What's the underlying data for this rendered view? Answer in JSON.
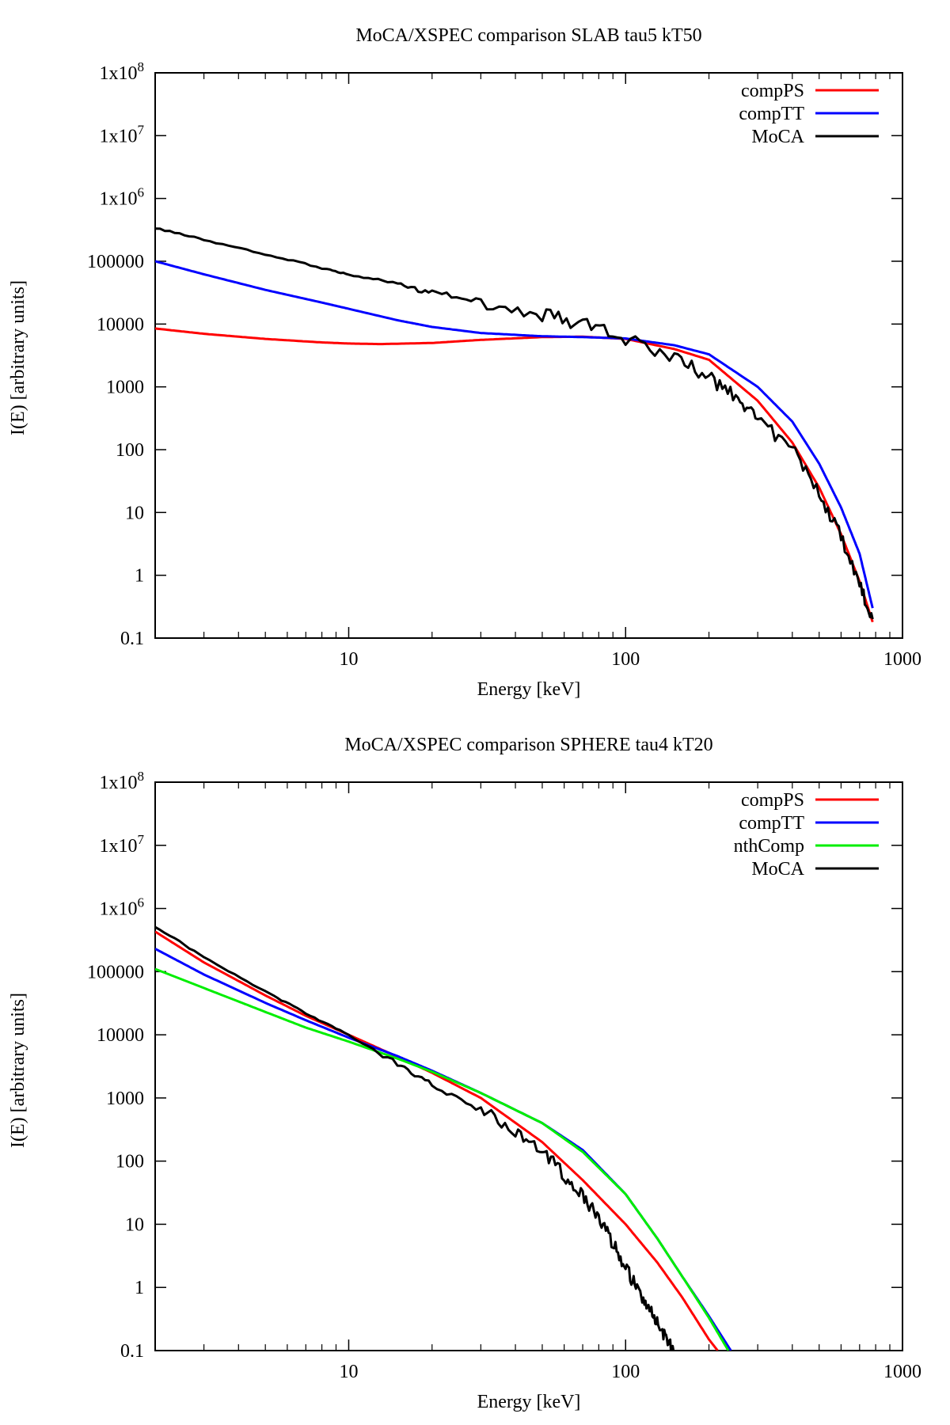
{
  "figure_kind": "two stacked log-log spectral plots",
  "chart_data": [
    {
      "type": "line",
      "title": "MoCA/XSPEC comparison SLAB tau5 kT50",
      "xlabel": "Energy [keV]",
      "ylabel": "I(E) [arbitrary units]",
      "xscale": "log",
      "yscale": "log",
      "xlim": [
        2,
        1000
      ],
      "ylim": [
        0.1,
        100000000
      ],
      "x_tick_values": [
        10,
        100,
        1000
      ],
      "x_tick_labels": [
        "10",
        "100",
        "1000"
      ],
      "y_tick_values": [
        0.1,
        1,
        10,
        100,
        1000,
        10000,
        100000,
        1000000,
        10000000,
        100000000
      ],
      "y_tick_labels": [
        {
          "base": "0.1"
        },
        {
          "base": "1"
        },
        {
          "base": "10"
        },
        {
          "base": "100"
        },
        {
          "base": "1000"
        },
        {
          "base": "10000"
        },
        {
          "base": "100000"
        },
        {
          "base": "1x10",
          "exp": "6"
        },
        {
          "base": "1x10",
          "exp": "7"
        },
        {
          "base": "1x10",
          "exp": "8"
        }
      ],
      "legend_position": "top-right",
      "series": [
        {
          "name": "compPS",
          "color": "#ff0000",
          "x": [
            2,
            3,
            5,
            8,
            10,
            13,
            20,
            30,
            50,
            70,
            100,
            150,
            200,
            300,
            400,
            500,
            600,
            700,
            780
          ],
          "y": [
            8500,
            7000,
            5800,
            5100,
            4900,
            4800,
            5000,
            5600,
            6200,
            6300,
            5800,
            4000,
            2700,
            600,
            130,
            25,
            4.5,
            0.8,
            0.18
          ]
        },
        {
          "name": "compTT",
          "color": "#0000ff",
          "x": [
            2,
            3,
            5,
            8,
            10,
            15,
            20,
            30,
            50,
            70,
            100,
            150,
            200,
            300,
            400,
            500,
            600,
            700,
            780
          ],
          "y": [
            100000,
            62000,
            35000,
            22000,
            17500,
            11500,
            9000,
            7200,
            6400,
            6200,
            5900,
            4600,
            3300,
            1000,
            280,
            60,
            12,
            2.2,
            0.3
          ]
        },
        {
          "name": "MoCA",
          "color": "#000000",
          "noisy": true,
          "x": [
            2,
            3,
            5,
            8,
            10,
            15,
            20,
            30,
            50,
            70,
            100,
            150,
            200,
            250,
            300,
            400,
            500,
            600,
            700,
            780
          ],
          "y": [
            340000,
            220000,
            130000,
            78000,
            62000,
            42000,
            32000,
            23000,
            14000,
            10000,
            6000,
            3000,
            1400,
            700,
            300,
            100,
            20,
            4,
            0.7,
            0.2
          ]
        }
      ]
    },
    {
      "type": "line",
      "title": "MoCA/XSPEC comparison SPHERE tau4 kT20",
      "xlabel": "Energy [keV]",
      "ylabel": "I(E) [arbitrary units]",
      "xscale": "log",
      "yscale": "log",
      "xlim": [
        2,
        1000
      ],
      "ylim": [
        0.1,
        100000000
      ],
      "x_tick_values": [
        10,
        100,
        1000
      ],
      "x_tick_labels": [
        "10",
        "100",
        "1000"
      ],
      "y_tick_values": [
        0.1,
        1,
        10,
        100,
        1000,
        10000,
        100000,
        1000000,
        10000000,
        100000000
      ],
      "y_tick_labels": [
        {
          "base": "0.1"
        },
        {
          "base": "1"
        },
        {
          "base": "10"
        },
        {
          "base": "100"
        },
        {
          "base": "1000"
        },
        {
          "base": "10000"
        },
        {
          "base": "100000"
        },
        {
          "base": "1x10",
          "exp": "6"
        },
        {
          "base": "1x10",
          "exp": "7"
        },
        {
          "base": "1x10",
          "exp": "8"
        }
      ],
      "legend_position": "top-right",
      "series": [
        {
          "name": "compPS",
          "color": "#ff0000",
          "x": [
            2,
            3,
            5,
            7,
            10,
            15,
            20,
            30,
            50,
            70,
            100,
            130,
            160,
            200,
            215
          ],
          "y": [
            430000,
            140000,
            42000,
            20000,
            10000,
            4500,
            2500,
            1000,
            200,
            50,
            10,
            2.5,
            0.7,
            0.15,
            0.1
          ]
        },
        {
          "name": "compTT",
          "color": "#0000ff",
          "x": [
            2,
            3,
            5,
            7,
            10,
            15,
            20,
            30,
            50,
            70,
            100,
            130,
            160,
            200,
            240
          ],
          "y": [
            230000,
            90000,
            32000,
            17000,
            9000,
            4600,
            2700,
            1200,
            400,
            150,
            30,
            6,
            1.5,
            0.35,
            0.1
          ]
        },
        {
          "name": "nthComp",
          "color": "#00ee00",
          "x": [
            2,
            3,
            5,
            7,
            10,
            15,
            20,
            30,
            50,
            70,
            100,
            130,
            160,
            200,
            235
          ],
          "y": [
            110000,
            55000,
            23000,
            13000,
            7800,
            4200,
            2600,
            1200,
            400,
            140,
            30,
            6,
            1.5,
            0.33,
            0.1
          ]
        },
        {
          "name": "MoCA",
          "color": "#000000",
          "noisy": true,
          "x": [
            2,
            3,
            5,
            7,
            10,
            15,
            20,
            30,
            40,
            50,
            60,
            70,
            80,
            90,
            100,
            110,
            120,
            130,
            140,
            150
          ],
          "y": [
            520000,
            170000,
            48000,
            22000,
            10000,
            3500,
            1600,
            650,
            300,
            140,
            60,
            28,
            13,
            5,
            2,
            1,
            0.5,
            0.3,
            0.15,
            0.1
          ]
        }
      ]
    }
  ]
}
